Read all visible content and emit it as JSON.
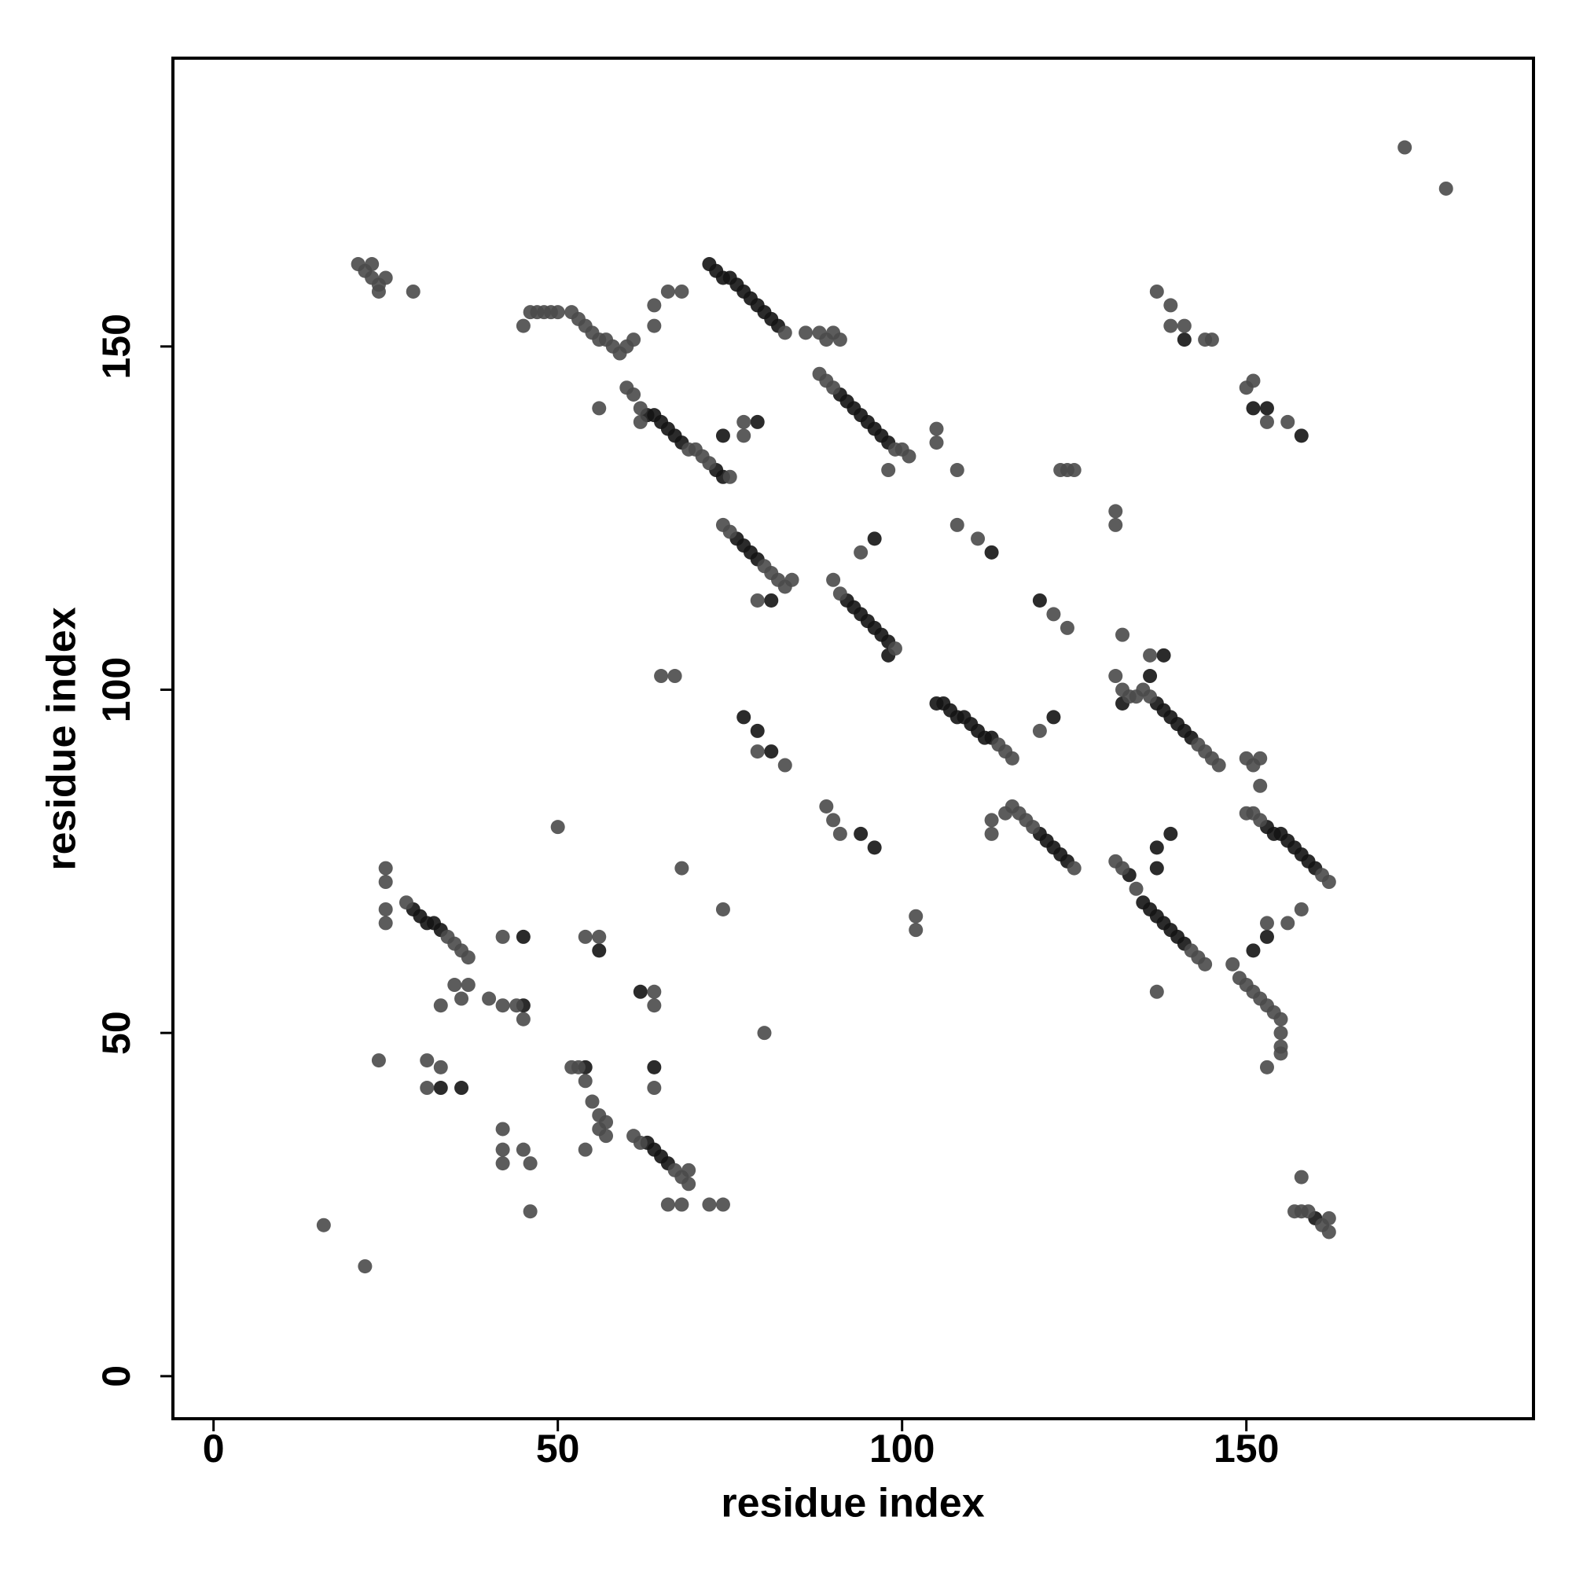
{
  "chart_data": {
    "type": "scatter",
    "xlabel": "residue index",
    "ylabel": "residue index",
    "xlim": [
      -5.9,
      191.7
    ],
    "ylim": [
      -6.2,
      192
    ],
    "xticks": [
      0,
      50,
      100,
      150
    ],
    "yticks": [
      0,
      50,
      100,
      150
    ],
    "series": [
      {
        "color": "#141414",
        "x": [
          72,
          73,
          74,
          75,
          76,
          77,
          78,
          79,
          80,
          81,
          82,
          63,
          64,
          65,
          66,
          67,
          68,
          73,
          74,
          91,
          92,
          93,
          94,
          95,
          96,
          97,
          98,
          76,
          77,
          78,
          79,
          92,
          93,
          94,
          95,
          96,
          97,
          98,
          98,
          105,
          106,
          107,
          108,
          109,
          110,
          111,
          112,
          113,
          137,
          138,
          139,
          140,
          141,
          142,
          132,
          136,
          138,
          120,
          121,
          122,
          123,
          124,
          153,
          154,
          155,
          156,
          157,
          158,
          159,
          160,
          135,
          136,
          137,
          138,
          139,
          140,
          141,
          133,
          29,
          30,
          31,
          32,
          33,
          63,
          64,
          65,
          66,
          141,
          153,
          151,
          158,
          96,
          113,
          81,
          120,
          122,
          77,
          79,
          81,
          94,
          96,
          45,
          56,
          62,
          64,
          54,
          36,
          33,
          45,
          74,
          79,
          137,
          139,
          137,
          151,
          153,
          160
        ],
        "y": [
          162,
          161,
          160,
          160,
          159,
          158,
          157,
          156,
          155,
          154,
          153,
          140,
          140,
          139,
          138,
          137,
          136,
          132,
          131,
          143,
          142,
          141,
          140,
          139,
          138,
          137,
          136,
          122,
          121,
          120,
          119,
          113,
          112,
          111,
          110,
          109,
          108,
          107,
          105,
          98,
          98,
          97,
          96,
          96,
          95,
          94,
          93,
          93,
          98,
          97,
          96,
          95,
          94,
          93,
          98,
          102,
          105,
          79,
          78,
          77,
          76,
          75,
          80,
          79,
          79,
          78,
          77,
          76,
          75,
          74,
          69,
          68,
          67,
          66,
          65,
          64,
          63,
          73,
          68,
          67,
          66,
          66,
          65,
          34,
          33,
          32,
          31,
          151,
          141,
          141,
          137,
          122,
          120,
          113,
          113,
          96,
          96,
          94,
          91,
          79,
          77,
          64,
          62,
          56,
          45,
          45,
          42,
          42,
          54,
          137,
          139,
          77,
          79,
          74,
          62,
          64,
          23
        ]
      },
      {
        "color": "#4a4a4a",
        "x": [
          173,
          179,
          21,
          22,
          23,
          23,
          24,
          24,
          25,
          29,
          45,
          46,
          47,
          48,
          49,
          50,
          52,
          53,
          54,
          55,
          56,
          57,
          58,
          59,
          60,
          61,
          64,
          64,
          66,
          68,
          56,
          62,
          60,
          61,
          62,
          69,
          70,
          71,
          72,
          75,
          77,
          77,
          83,
          86,
          88,
          89,
          90,
          91,
          88,
          89,
          90,
          99,
          100,
          101,
          98,
          105,
          105,
          108,
          123,
          124,
          125,
          131,
          131,
          137,
          139,
          139,
          141,
          144,
          145,
          150,
          151,
          153,
          156,
          74,
          75,
          80,
          81,
          82,
          83,
          84,
          79,
          94,
          108,
          111,
          90,
          91,
          99,
          122,
          124,
          132,
          65,
          67,
          114,
          115,
          116,
          120,
          79,
          83,
          131,
          132,
          133,
          134,
          135,
          136,
          143,
          144,
          145,
          146,
          136,
          150,
          151,
          152,
          152,
          89,
          90,
          91,
          115,
          116,
          117,
          118,
          119,
          125,
          113,
          113,
          150,
          151,
          152,
          161,
          162,
          153,
          156,
          158,
          131,
          132,
          134,
          142,
          143,
          144,
          137,
          148,
          149,
          150,
          151,
          152,
          153,
          154,
          155,
          155,
          155,
          155,
          153,
          158,
          157,
          158,
          159,
          161,
          162,
          162,
          102,
          102,
          74,
          68,
          50,
          80,
          28,
          34,
          35,
          36,
          37,
          25,
          25,
          25,
          25,
          35,
          37,
          36,
          33,
          40,
          42,
          44,
          45,
          42,
          54,
          56,
          64,
          64,
          24,
          31,
          33,
          31,
          52,
          53,
          54,
          55,
          56,
          56,
          57,
          57,
          54,
          64,
          42,
          42,
          42,
          45,
          46,
          46,
          61,
          62,
          67,
          68,
          69,
          69,
          66,
          68,
          72,
          74,
          16,
          22
        ],
        "y": [
          179,
          173,
          162,
          161,
          162,
          160,
          159,
          158,
          160,
          158,
          153,
          155,
          155,
          155,
          155,
          155,
          155,
          154,
          153,
          152,
          151,
          151,
          150,
          149,
          150,
          151,
          153,
          156,
          158,
          158,
          141,
          139,
          144,
          143,
          141,
          135,
          135,
          134,
          133,
          131,
          137,
          139,
          152,
          152,
          152,
          151,
          152,
          151,
          146,
          145,
          144,
          135,
          135,
          134,
          132,
          138,
          136,
          132,
          132,
          132,
          132,
          126,
          124,
          158,
          156,
          153,
          153,
          151,
          151,
          144,
          145,
          139,
          139,
          124,
          123,
          118,
          117,
          116,
          115,
          116,
          113,
          120,
          124,
          122,
          116,
          114,
          106,
          111,
          109,
          108,
          102,
          102,
          92,
          91,
          90,
          94,
          91,
          89,
          102,
          100,
          99,
          99,
          100,
          99,
          92,
          91,
          90,
          89,
          105,
          90,
          89,
          90,
          86,
          83,
          81,
          79,
          82,
          83,
          82,
          81,
          80,
          74,
          81,
          79,
          82,
          82,
          81,
          73,
          72,
          66,
          66,
          68,
          75,
          74,
          71,
          62,
          61,
          60,
          56,
          60,
          58,
          57,
          56,
          55,
          54,
          53,
          52,
          50,
          48,
          47,
          45,
          29,
          24,
          24,
          24,
          22,
          21,
          23,
          67,
          65,
          68,
          74,
          80,
          50,
          69,
          64,
          63,
          62,
          61,
          74,
          72,
          68,
          66,
          57,
          57,
          55,
          54,
          55,
          54,
          54,
          52,
          64,
          64,
          64,
          56,
          54,
          46,
          46,
          45,
          42,
          45,
          45,
          43,
          40,
          38,
          36,
          37,
          35,
          33,
          42,
          36,
          33,
          31,
          33,
          31,
          24,
          35,
          34,
          30,
          29,
          28,
          30,
          25,
          25,
          25,
          25,
          22,
          16
        ]
      }
    ]
  }
}
